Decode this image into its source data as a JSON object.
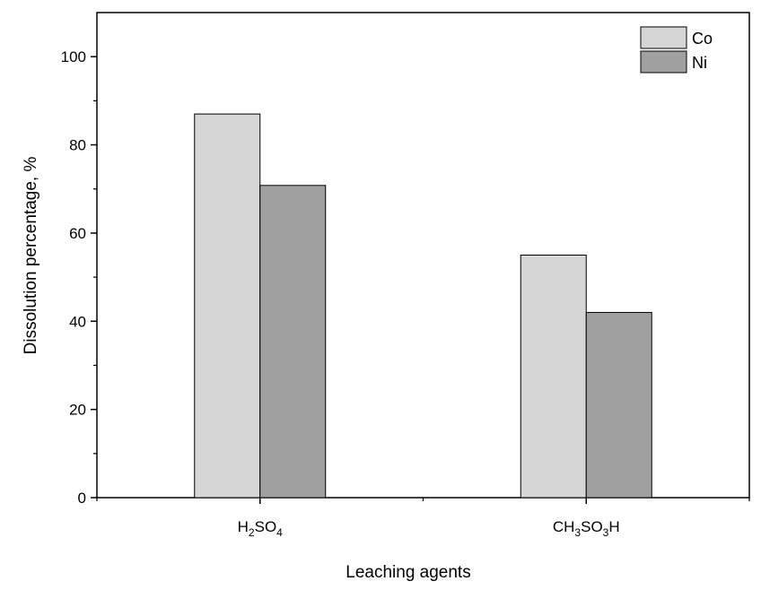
{
  "chart_data": {
    "type": "bar",
    "title": "",
    "xlabel": "Leaching agents",
    "ylabel": "Dissolution percentage, %",
    "categories": [
      {
        "parts": [
          [
            "H",
            false
          ],
          [
            "2",
            true
          ],
          [
            "SO",
            false
          ],
          [
            "4",
            true
          ]
        ]
      },
      {
        "parts": [
          [
            "CH",
            false
          ],
          [
            "3",
            true
          ],
          [
            "SO",
            false
          ],
          [
            "3",
            true
          ],
          [
            "H",
            false
          ]
        ]
      }
    ],
    "series": [
      {
        "name": "Co",
        "values": [
          87,
          55
        ],
        "color": "#d6d6d6"
      },
      {
        "name": "Ni",
        "values": [
          70.8,
          42
        ],
        "color": "#a0a0a0"
      }
    ],
    "ylim": [
      0,
      110
    ],
    "yticks": [
      0,
      20,
      40,
      60,
      80,
      100
    ],
    "grid": false,
    "legend": "top-right"
  }
}
